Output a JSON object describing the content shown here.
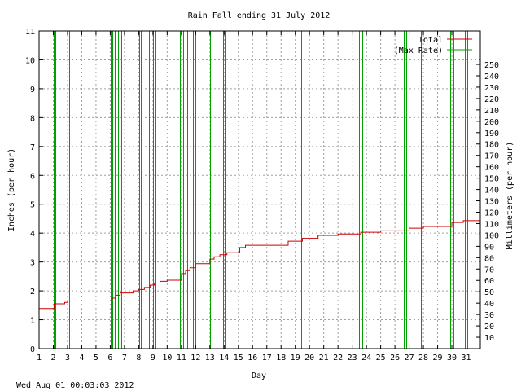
{
  "chart_data": {
    "type": "line",
    "title": "Rain Fall ending 31 July 2012",
    "xlabel": "Day",
    "ylabel": "Inches (per hour)",
    "y2label": "Millimeters (per hour)",
    "timestamp": "Wed Aug 01 00:03:03 2012",
    "xlim": [
      1,
      32
    ],
    "ylim": [
      0,
      11
    ],
    "y2lim": [
      0,
      279.4
    ],
    "x_ticks": [
      1,
      2,
      3,
      4,
      5,
      6,
      7,
      8,
      9,
      10,
      11,
      12,
      13,
      14,
      15,
      16,
      17,
      18,
      19,
      20,
      21,
      22,
      23,
      24,
      25,
      26,
      27,
      28,
      29,
      30,
      31
    ],
    "y_ticks": [
      0,
      1,
      2,
      3,
      4,
      5,
      6,
      7,
      8,
      9,
      10,
      11
    ],
    "y2_ticks": [
      10,
      20,
      30,
      40,
      50,
      60,
      70,
      80,
      90,
      100,
      110,
      120,
      130,
      140,
      150,
      160,
      170,
      180,
      190,
      200,
      210,
      220,
      230,
      240,
      250
    ],
    "grid": true,
    "legend_position": "top-right",
    "colors": {
      "total": "#cc0000",
      "max_rate": "#00a000",
      "grid": "#a0a0a0"
    },
    "series": [
      {
        "name": "Total",
        "style": "step",
        "points": [
          [
            1,
            1.39
          ],
          [
            2.05,
            1.55
          ],
          [
            2.8,
            1.6
          ],
          [
            3.0,
            1.65
          ],
          [
            6.1,
            1.75
          ],
          [
            6.4,
            1.85
          ],
          [
            6.7,
            1.93
          ],
          [
            7.6,
            2.0
          ],
          [
            8.0,
            2.05
          ],
          [
            8.4,
            2.12
          ],
          [
            8.8,
            2.2
          ],
          [
            9.1,
            2.27
          ],
          [
            9.5,
            2.33
          ],
          [
            10.0,
            2.37
          ],
          [
            11.0,
            2.6
          ],
          [
            11.3,
            2.7
          ],
          [
            11.6,
            2.8
          ],
          [
            12.0,
            2.94
          ],
          [
            13.0,
            3.1
          ],
          [
            13.3,
            3.18
          ],
          [
            13.7,
            3.25
          ],
          [
            14.2,
            3.32
          ],
          [
            15.1,
            3.5
          ],
          [
            15.5,
            3.58
          ],
          [
            18.5,
            3.72
          ],
          [
            19.5,
            3.82
          ],
          [
            20.6,
            3.92
          ],
          [
            22.0,
            3.97
          ],
          [
            23.6,
            4.03
          ],
          [
            25.0,
            4.08
          ],
          [
            27.0,
            4.17
          ],
          [
            28.0,
            4.23
          ],
          [
            30.0,
            4.37
          ],
          [
            30.8,
            4.43
          ],
          [
            32.0,
            4.43
          ]
        ]
      },
      {
        "name": "(Max Rate)",
        "style": "impulse",
        "values": [
          [
            2.05,
            11
          ],
          [
            2.15,
            11
          ],
          [
            3.0,
            11
          ],
          [
            3.1,
            11
          ],
          [
            6.05,
            11
          ],
          [
            6.15,
            11
          ],
          [
            6.3,
            11
          ],
          [
            6.55,
            11
          ],
          [
            6.8,
            11
          ],
          [
            8.05,
            11
          ],
          [
            8.15,
            11
          ],
          [
            8.7,
            11
          ],
          [
            8.85,
            11
          ],
          [
            9.0,
            11
          ],
          [
            9.2,
            11
          ],
          [
            9.45,
            11
          ],
          [
            10.9,
            11
          ],
          [
            11.1,
            11
          ],
          [
            11.4,
            11
          ],
          [
            11.6,
            11
          ],
          [
            11.8,
            11
          ],
          [
            12.0,
            11
          ],
          [
            13.0,
            11
          ],
          [
            13.15,
            11
          ],
          [
            13.9,
            11
          ],
          [
            14.1,
            11
          ],
          [
            15.0,
            11
          ],
          [
            15.3,
            11
          ],
          [
            18.4,
            11
          ],
          [
            19.4,
            11
          ],
          [
            20.5,
            11
          ],
          [
            23.5,
            11
          ],
          [
            23.7,
            11
          ],
          [
            26.6,
            11
          ],
          [
            26.8,
            11
          ],
          [
            27.8,
            11
          ],
          [
            29.9,
            11
          ],
          [
            30.1,
            11
          ],
          [
            30.9,
            11
          ],
          [
            31.1,
            11
          ]
        ]
      }
    ]
  }
}
